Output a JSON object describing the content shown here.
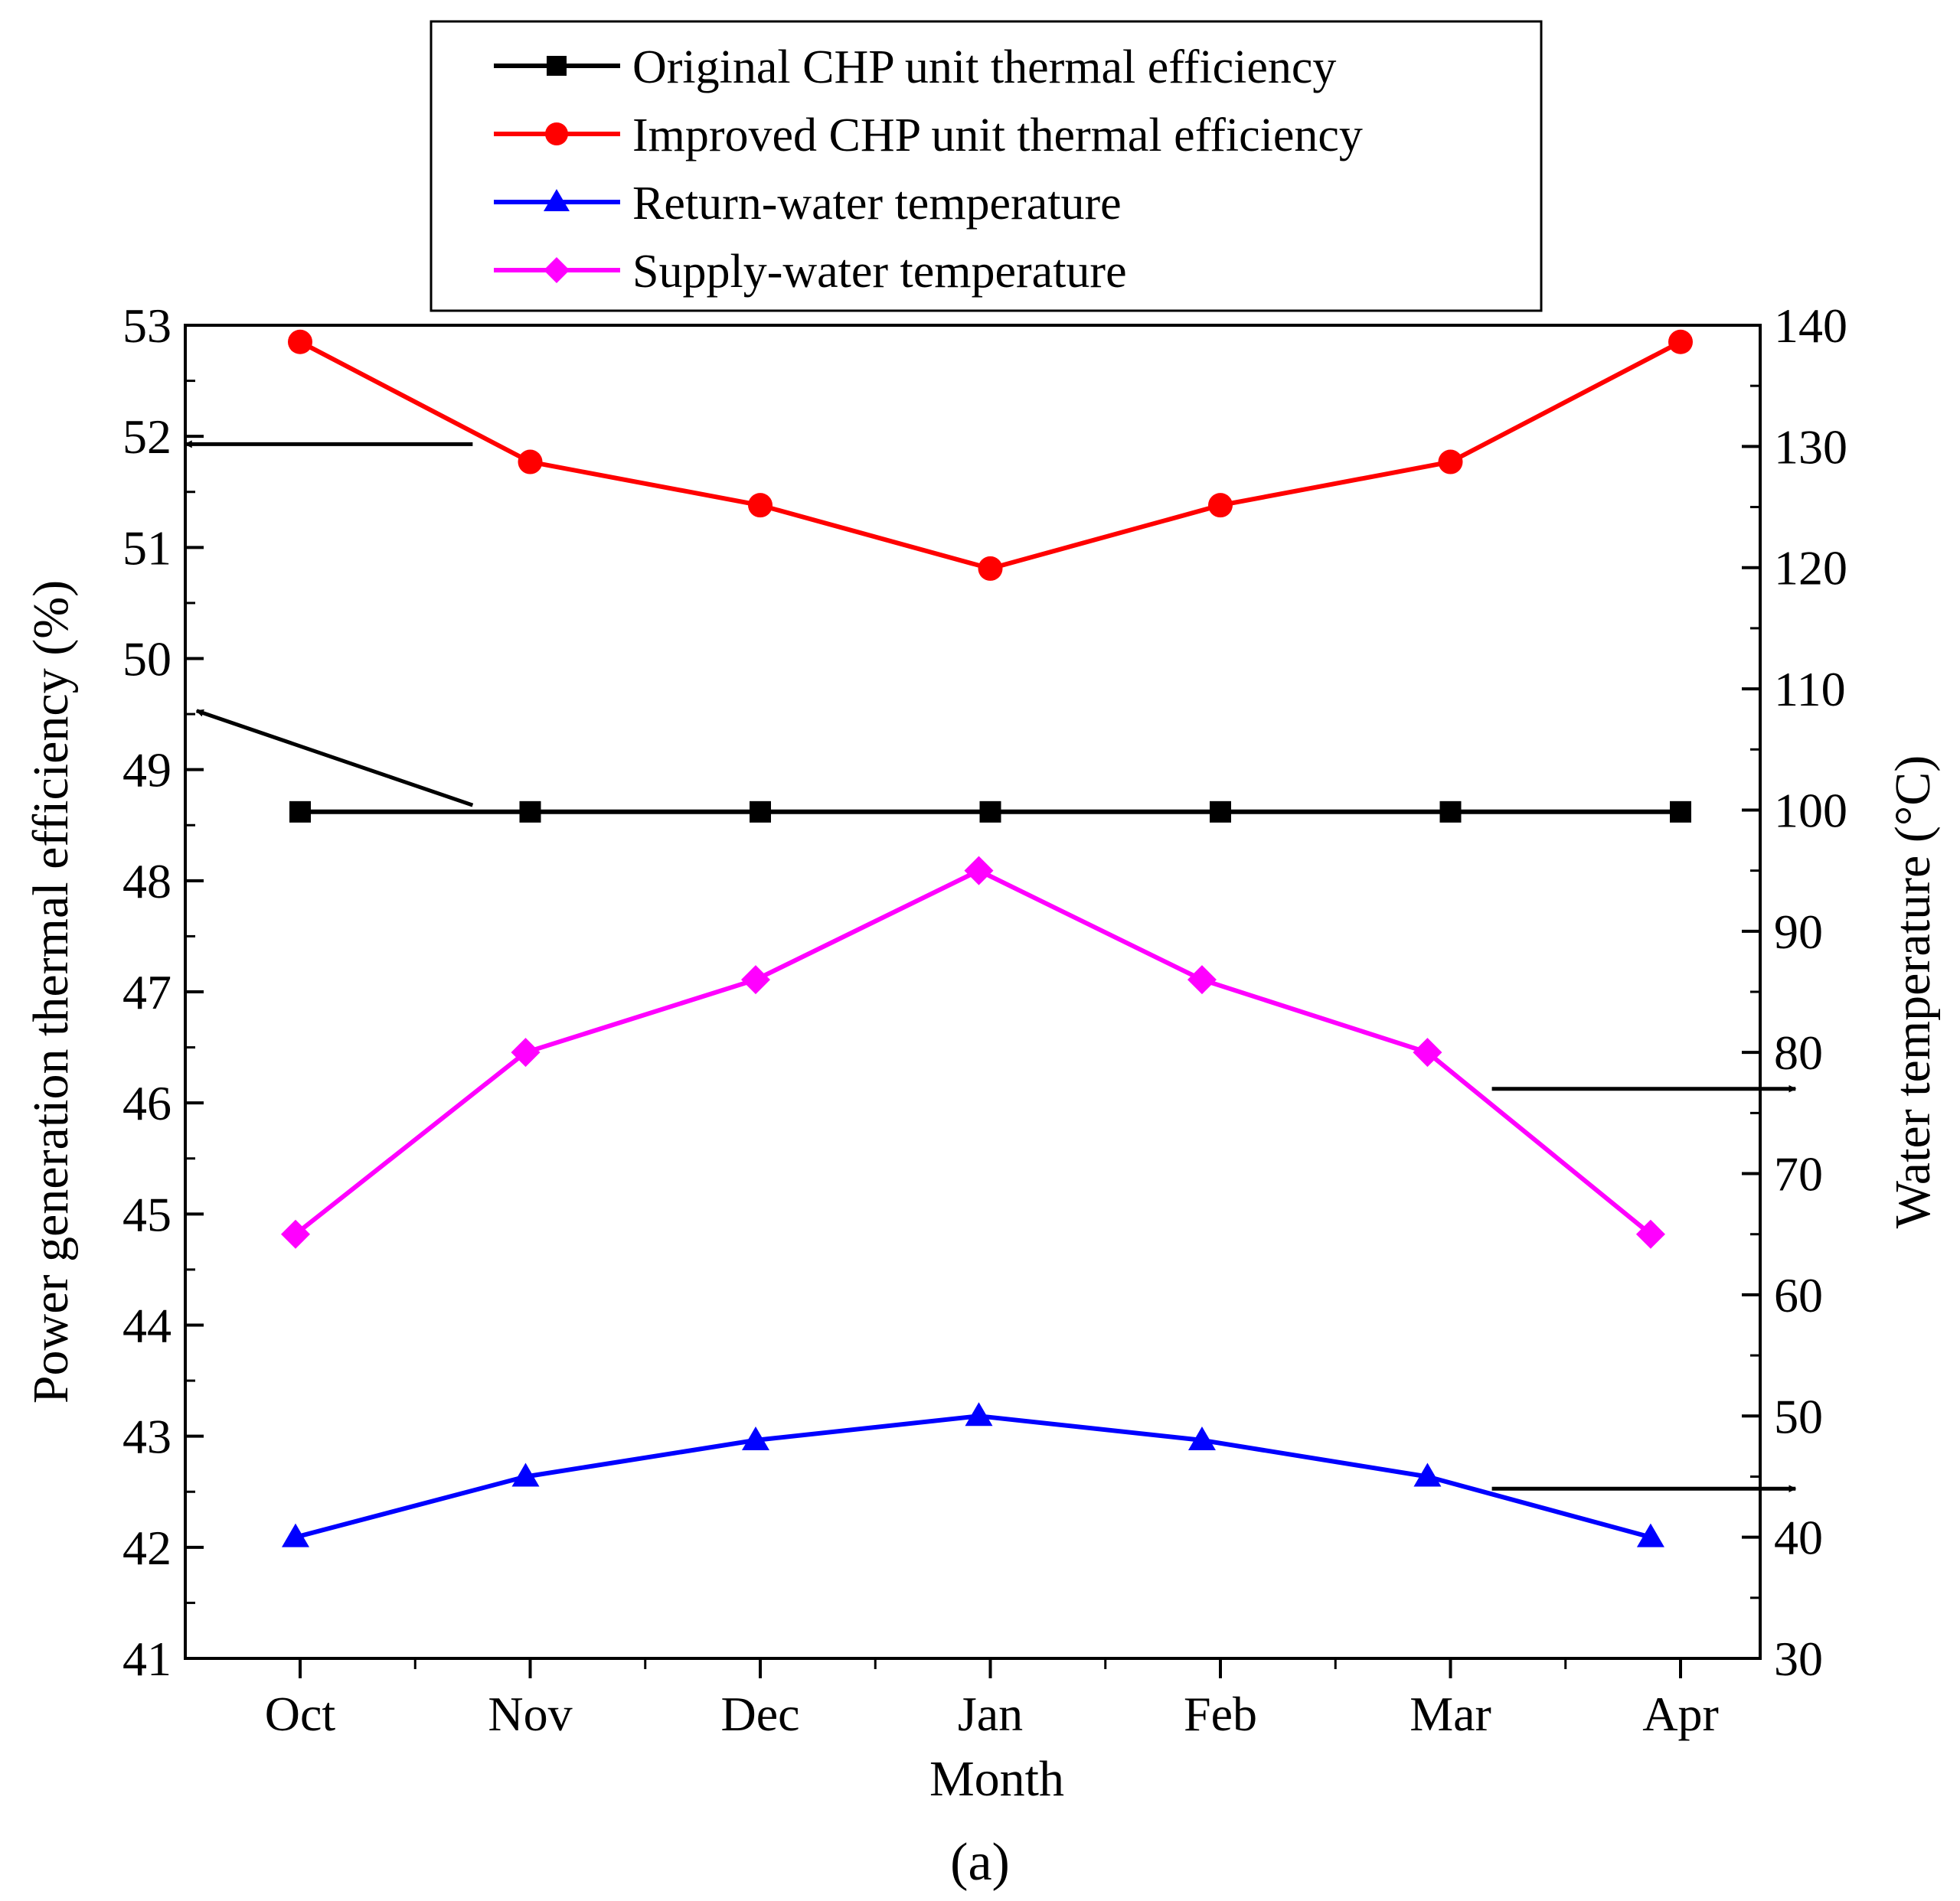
{
  "chart_data": {
    "type": "line",
    "categories": [
      "Oct",
      "Nov",
      "Dec",
      "Jan",
      "Feb",
      "Mar",
      "Apr"
    ],
    "xlabel": "Month",
    "ylabel_left": "Power generation thermal efficiency (%)",
    "ylabel_right": "Water temperature (°C)",
    "ylim_left": [
      41,
      53
    ],
    "ylim_right": [
      30,
      140
    ],
    "yticks_left": [
      "41",
      "42",
      "43",
      "44",
      "45",
      "46",
      "47",
      "48",
      "49",
      "50",
      "51",
      "52",
      "53"
    ],
    "yticks_right": [
      "30",
      "40",
      "50",
      "60",
      "70",
      "80",
      "90",
      "100",
      "110",
      "120",
      "130",
      "140"
    ],
    "panel_label": "(a)",
    "legend_position": "top-center",
    "series": [
      {
        "name": "Original CHP unit thermal efficiency",
        "axis": "left",
        "color": "#000000",
        "marker": "square",
        "x": [
          0,
          1,
          2,
          3,
          4,
          5,
          6
        ],
        "values": [
          48.62,
          48.62,
          48.62,
          48.62,
          48.62,
          48.62,
          48.62
        ]
      },
      {
        "name": "Improved CHP unit thermal efficiency",
        "axis": "left",
        "color": "#ff0000",
        "marker": "circle",
        "x": [
          0,
          1,
          2,
          3,
          4,
          5,
          6
        ],
        "values": [
          52.85,
          51.77,
          51.38,
          50.81,
          51.38,
          51.77,
          52.85
        ]
      },
      {
        "name": "Return-water temperature",
        "axis": "right",
        "color": "#0000ff",
        "marker": "triangle",
        "x": [
          -0.02,
          0.98,
          1.98,
          2.95,
          3.92,
          4.9,
          5.87
        ],
        "values": [
          40,
          45,
          48,
          50,
          48,
          45,
          40
        ]
      },
      {
        "name": "Supply-water temperature",
        "axis": "right",
        "color": "#ff00ff",
        "marker": "diamond",
        "x": [
          -0.02,
          0.98,
          1.98,
          2.95,
          3.92,
          4.9,
          5.87
        ],
        "values": [
          65,
          80,
          86,
          95,
          86,
          80,
          65
        ]
      }
    ],
    "annotations": [
      {
        "type": "arrow",
        "axis": "left",
        "from": [
          0.75,
          51.93
        ],
        "to": [
          -0.5,
          51.93
        ],
        "meaning": "red series reads left axis"
      },
      {
        "type": "arrow",
        "axis": "left",
        "from": [
          0.75,
          48.68
        ],
        "to": [
          -0.45,
          49.53
        ],
        "meaning": "black series reads left axis"
      },
      {
        "type": "arrow",
        "axis": "right",
        "from": [
          5.18,
          77
        ],
        "to": [
          6.5,
          77
        ],
        "meaning": "magenta series reads right axis"
      },
      {
        "type": "arrow",
        "axis": "right",
        "from": [
          5.18,
          44
        ],
        "to": [
          6.5,
          44
        ],
        "meaning": "blue series reads right axis"
      }
    ]
  }
}
